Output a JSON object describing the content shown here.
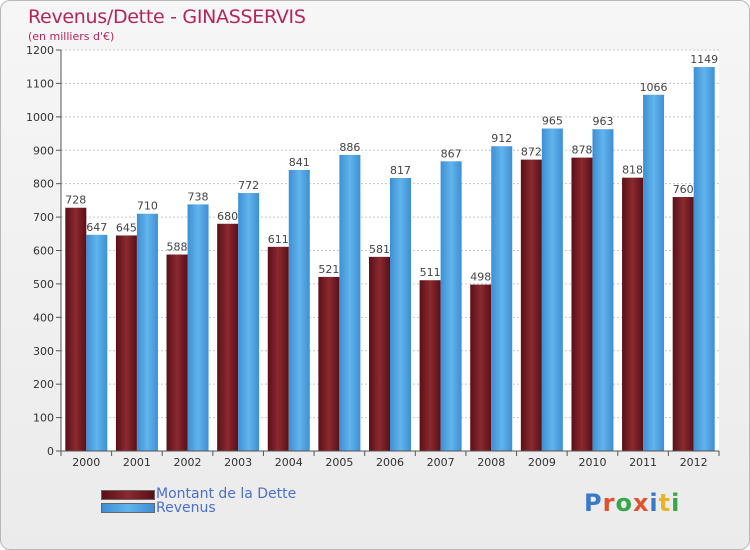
{
  "header": {
    "title": "Revenus/Dette - GINASSERVIS",
    "subtitle": "(en milliers d'€)"
  },
  "brand": {
    "text": "Proxiti",
    "letter_colors": [
      "#3a78c9",
      "#e0522f",
      "#3aa64a",
      "#e0522f",
      "#3a78c9",
      "#e8b52a",
      "#3aa64a"
    ]
  },
  "colors": {
    "dette": "#7a1d24",
    "revenus": "#4aa3e3",
    "title": "#b5255a",
    "legend_text": "#4a6fd0"
  },
  "chart_data": {
    "type": "bar",
    "categories": [
      "2000",
      "2001",
      "2002",
      "2003",
      "2004",
      "2005",
      "2006",
      "2007",
      "2008",
      "2009",
      "2010",
      "2011",
      "2012"
    ],
    "series": [
      {
        "name": "Montant de la Dette",
        "values": [
          728,
          645,
          588,
          680,
          611,
          521,
          581,
          511,
          498,
          872,
          878,
          818,
          760
        ]
      },
      {
        "name": "Revenus",
        "values": [
          647,
          710,
          738,
          772,
          841,
          886,
          817,
          867,
          912,
          965,
          963,
          1066,
          1149
        ]
      }
    ],
    "y_ticks": [
      "0",
      "100",
      "200",
      "300",
      "400",
      "500",
      "600",
      "700",
      "800",
      "900",
      "1000",
      "1100",
      "1200"
    ],
    "ylim": [
      0,
      1200
    ],
    "grid": true,
    "legend_position": "bottom-left"
  }
}
